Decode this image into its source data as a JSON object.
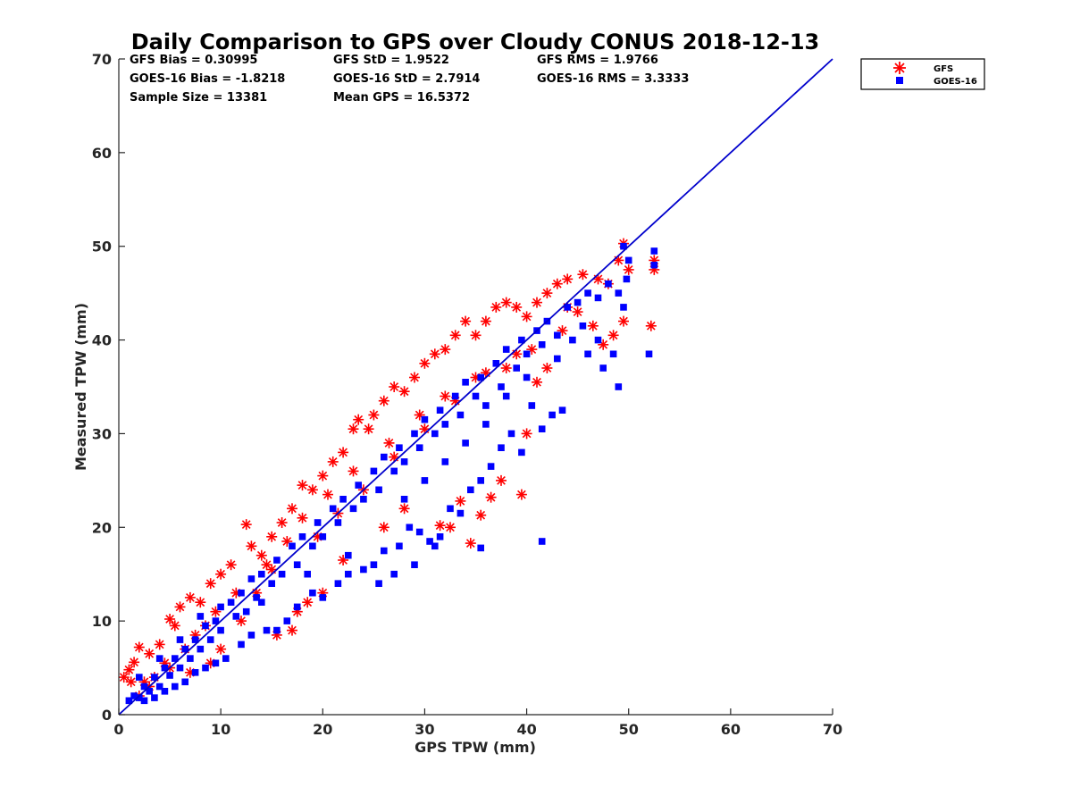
{
  "chart_data": {
    "type": "scatter",
    "title": "Daily Comparison to GPS over Cloudy CONUS 2018-12-13",
    "xlabel": "GPS TPW (mm)",
    "ylabel": "Measured TPW (mm)",
    "xlim": [
      0,
      70
    ],
    "ylim": [
      0,
      70
    ],
    "xticks": [
      "0",
      "10",
      "20",
      "30",
      "40",
      "50",
      "60",
      "70"
    ],
    "yticks": [
      "0",
      "10",
      "20",
      "30",
      "40",
      "50",
      "60",
      "70"
    ],
    "grid": false,
    "legend_position": "outside-top-right",
    "stats": [
      [
        "GFS Bias = 0.30995",
        "GFS StD = 1.9522",
        "GFS RMS = 1.9766"
      ],
      [
        "GOES-16 Bias = -1.8218",
        "GOES-16 StD = 2.7914",
        "GOES-16 RMS = 3.3333"
      ],
      [
        "Sample Size = 13381",
        "Mean GPS = 16.5372",
        ""
      ]
    ],
    "reference_line": {
      "x": [
        0,
        70
      ],
      "y": [
        0,
        70
      ],
      "color": "#0000cc"
    },
    "series": [
      {
        "name": "GFS",
        "marker": "asterisk",
        "color": "#ff0000",
        "points": [
          [
            0.5,
            4.0
          ],
          [
            1.0,
            4.8
          ],
          [
            1.5,
            5.6
          ],
          [
            2.0,
            7.2
          ],
          [
            1.2,
            3.5
          ],
          [
            3.0,
            6.5
          ],
          [
            4.0,
            7.5
          ],
          [
            5.0,
            10.2
          ],
          [
            5.5,
            9.5
          ],
          [
            6.0,
            11.5
          ],
          [
            7.0,
            12.5
          ],
          [
            8.0,
            12.0
          ],
          [
            9.0,
            14.0
          ],
          [
            10.0,
            15.0
          ],
          [
            11.0,
            16.0
          ],
          [
            12.5,
            20.3
          ],
          [
            13.0,
            18.0
          ],
          [
            14.0,
            17.0
          ],
          [
            15.0,
            19.0
          ],
          [
            16.0,
            20.5
          ],
          [
            17.0,
            22.0
          ],
          [
            18.0,
            24.5
          ],
          [
            19.0,
            24.0
          ],
          [
            20.0,
            25.5
          ],
          [
            21.0,
            27.0
          ],
          [
            22.0,
            28.0
          ],
          [
            23.0,
            30.5
          ],
          [
            23.5,
            31.5
          ],
          [
            24.5,
            30.5
          ],
          [
            25.0,
            32.0
          ],
          [
            26.0,
            33.5
          ],
          [
            27.0,
            35.0
          ],
          [
            28.0,
            34.5
          ],
          [
            29.0,
            36.0
          ],
          [
            30.0,
            37.5
          ],
          [
            31.0,
            38.5
          ],
          [
            32.0,
            39.0
          ],
          [
            33.0,
            40.5
          ],
          [
            34.0,
            42.0
          ],
          [
            35.0,
            40.5
          ],
          [
            36.0,
            42.0
          ],
          [
            37.0,
            43.5
          ],
          [
            38.0,
            44.0
          ],
          [
            39.0,
            43.5
          ],
          [
            40.0,
            42.5
          ],
          [
            41.0,
            44.0
          ],
          [
            42.0,
            45.0
          ],
          [
            43.0,
            46.0
          ],
          [
            44.0,
            46.5
          ],
          [
            45.5,
            47.0
          ],
          [
            47.0,
            46.5
          ],
          [
            48.0,
            46.0
          ],
          [
            49.0,
            48.5
          ],
          [
            49.5,
            50.3
          ],
          [
            50.0,
            47.5
          ],
          [
            52.5,
            48.5
          ],
          [
            52.5,
            47.5
          ],
          [
            52.2,
            41.5
          ],
          [
            49.5,
            42.0
          ],
          [
            48.5,
            40.5
          ],
          [
            47.5,
            39.5
          ],
          [
            46.5,
            41.5
          ],
          [
            42.0,
            37.0
          ],
          [
            41.0,
            35.5
          ],
          [
            40.0,
            30.0
          ],
          [
            39.5,
            23.5
          ],
          [
            37.5,
            25.0
          ],
          [
            36.5,
            23.2
          ],
          [
            35.5,
            21.3
          ],
          [
            34.5,
            18.3
          ],
          [
            33.5,
            22.8
          ],
          [
            32.5,
            20.0
          ],
          [
            31.5,
            20.2
          ],
          [
            12.0,
            10.0
          ],
          [
            10.0,
            7.0
          ],
          [
            9.0,
            5.5
          ],
          [
            7.0,
            4.5
          ],
          [
            5.0,
            5.0
          ],
          [
            17.5,
            11.0
          ],
          [
            17.0,
            9.0
          ],
          [
            15.5,
            8.5
          ],
          [
            18.5,
            12.0
          ],
          [
            20.0,
            13.0
          ],
          [
            22.0,
            16.5
          ],
          [
            26.0,
            20.0
          ],
          [
            28.0,
            22.0
          ],
          [
            3.0,
            3.0
          ],
          [
            2.0,
            2.0
          ],
          [
            6.5,
            7.0
          ],
          [
            8.5,
            9.5
          ],
          [
            13.5,
            13.0
          ],
          [
            15.0,
            15.5
          ],
          [
            19.5,
            19.0
          ],
          [
            21.5,
            21.5
          ],
          [
            24.0,
            24.0
          ],
          [
            27.0,
            27.5
          ],
          [
            30.0,
            30.5
          ],
          [
            33.0,
            33.5
          ],
          [
            36.0,
            36.5
          ],
          [
            39.0,
            38.5
          ],
          [
            44.0,
            43.5
          ],
          [
            45.0,
            43.0
          ],
          [
            43.5,
            41.0
          ],
          [
            40.5,
            39.0
          ],
          [
            38.0,
            37.0
          ],
          [
            35.0,
            36.0
          ],
          [
            32.0,
            34.0
          ],
          [
            29.5,
            32.0
          ],
          [
            26.5,
            29.0
          ],
          [
            23.0,
            26.0
          ],
          [
            20.5,
            23.5
          ],
          [
            18.0,
            21.0
          ],
          [
            16.5,
            18.5
          ],
          [
            14.5,
            16.0
          ],
          [
            11.5,
            13.0
          ],
          [
            9.5,
            11.0
          ],
          [
            7.5,
            8.5
          ],
          [
            4.5,
            5.5
          ],
          [
            3.5,
            4.0
          ],
          [
            2.5,
            3.5
          ]
        ]
      },
      {
        "name": "GOES-16",
        "marker": "square",
        "color": "#0000ff",
        "points": [
          [
            1.0,
            1.5
          ],
          [
            1.5,
            2.0
          ],
          [
            2.0,
            1.8
          ],
          [
            2.5,
            3.0
          ],
          [
            3.0,
            2.5
          ],
          [
            3.5,
            4.0
          ],
          [
            4.0,
            3.0
          ],
          [
            4.5,
            5.0
          ],
          [
            5.0,
            4.2
          ],
          [
            5.5,
            6.0
          ],
          [
            6.0,
            5.0
          ],
          [
            6.5,
            7.0
          ],
          [
            7.0,
            6.0
          ],
          [
            7.5,
            8.0
          ],
          [
            8.0,
            7.0
          ],
          [
            8.5,
            9.5
          ],
          [
            9.0,
            8.0
          ],
          [
            9.5,
            10.0
          ],
          [
            10.0,
            9.0
          ],
          [
            11.0,
            12.0
          ],
          [
            11.5,
            10.5
          ],
          [
            12.0,
            13.0
          ],
          [
            12.5,
            11.0
          ],
          [
            13.0,
            14.5
          ],
          [
            13.5,
            12.5
          ],
          [
            14.0,
            15.0
          ],
          [
            15.0,
            14.0
          ],
          [
            15.5,
            16.5
          ],
          [
            16.0,
            15.0
          ],
          [
            17.0,
            18.0
          ],
          [
            17.5,
            16.0
          ],
          [
            18.0,
            19.0
          ],
          [
            19.0,
            18.0
          ],
          [
            19.5,
            20.5
          ],
          [
            20.0,
            19.0
          ],
          [
            21.0,
            22.0
          ],
          [
            21.5,
            20.5
          ],
          [
            22.0,
            23.0
          ],
          [
            23.0,
            22.0
          ],
          [
            23.5,
            24.5
          ],
          [
            24.0,
            23.0
          ],
          [
            25.0,
            26.0
          ],
          [
            25.5,
            24.0
          ],
          [
            26.0,
            27.5
          ],
          [
            27.0,
            26.0
          ],
          [
            27.5,
            28.5
          ],
          [
            28.0,
            27.0
          ],
          [
            29.0,
            30.0
          ],
          [
            29.5,
            28.5
          ],
          [
            30.0,
            31.5
          ],
          [
            31.0,
            30.0
          ],
          [
            31.5,
            32.5
          ],
          [
            32.0,
            31.0
          ],
          [
            33.0,
            34.0
          ],
          [
            33.5,
            32.0
          ],
          [
            34.0,
            35.5
          ],
          [
            35.0,
            34.0
          ],
          [
            35.5,
            36.0
          ],
          [
            36.0,
            33.0
          ],
          [
            37.0,
            37.5
          ],
          [
            37.5,
            35.0
          ],
          [
            38.0,
            39.0
          ],
          [
            39.0,
            37.0
          ],
          [
            39.5,
            40.0
          ],
          [
            40.0,
            38.5
          ],
          [
            41.0,
            41.0
          ],
          [
            41.5,
            39.5
          ],
          [
            42.0,
            42.0
          ],
          [
            43.0,
            40.5
          ],
          [
            44.0,
            43.5
          ],
          [
            45.0,
            44.0
          ],
          [
            46.0,
            45.0
          ],
          [
            47.0,
            44.5
          ],
          [
            48.0,
            46.0
          ],
          [
            49.0,
            45.0
          ],
          [
            49.5,
            50.0
          ],
          [
            50.0,
            48.5
          ],
          [
            49.8,
            46.5
          ],
          [
            52.5,
            49.5
          ],
          [
            52.5,
            48.0
          ],
          [
            52.0,
            38.5
          ],
          [
            49.5,
            43.5
          ],
          [
            49.0,
            35.0
          ],
          [
            48.5,
            38.5
          ],
          [
            47.5,
            37.0
          ],
          [
            46.0,
            38.5
          ],
          [
            44.5,
            40.0
          ],
          [
            43.5,
            32.5
          ],
          [
            42.5,
            32.0
          ],
          [
            41.5,
            30.5
          ],
          [
            40.5,
            33.0
          ],
          [
            39.5,
            28.0
          ],
          [
            38.5,
            30.0
          ],
          [
            37.5,
            28.5
          ],
          [
            36.5,
            26.5
          ],
          [
            35.5,
            25.0
          ],
          [
            34.5,
            24.0
          ],
          [
            33.5,
            21.5
          ],
          [
            32.5,
            22.0
          ],
          [
            31.5,
            19.0
          ],
          [
            30.5,
            18.5
          ],
          [
            29.5,
            19.5
          ],
          [
            28.5,
            20.0
          ],
          [
            27.5,
            18.0
          ],
          [
            26.0,
            17.5
          ],
          [
            25.0,
            16.0
          ],
          [
            24.0,
            15.5
          ],
          [
            22.5,
            15.0
          ],
          [
            21.5,
            14.0
          ],
          [
            20.0,
            12.5
          ],
          [
            19.0,
            13.0
          ],
          [
            17.5,
            11.5
          ],
          [
            16.5,
            10.0
          ],
          [
            15.5,
            9.0
          ],
          [
            14.5,
            9.0
          ],
          [
            13.0,
            8.5
          ],
          [
            12.0,
            7.5
          ],
          [
            10.5,
            6.0
          ],
          [
            9.5,
            5.5
          ],
          [
            8.5,
            5.0
          ],
          [
            7.5,
            4.5
          ],
          [
            6.5,
            3.5
          ],
          [
            5.5,
            3.0
          ],
          [
            4.5,
            2.5
          ],
          [
            3.5,
            1.8
          ],
          [
            2.5,
            1.5
          ],
          [
            41.5,
            18.5
          ],
          [
            35.5,
            17.8
          ],
          [
            31.0,
            18.0
          ],
          [
            29.0,
            16.0
          ],
          [
            25.5,
            14.0
          ],
          [
            27.0,
            15.0
          ],
          [
            22.5,
            17.0
          ],
          [
            18.5,
            15.0
          ],
          [
            14.0,
            12.0
          ],
          [
            10.0,
            11.5
          ],
          [
            8.0,
            10.5
          ],
          [
            6.0,
            8.0
          ],
          [
            4.0,
            6.0
          ],
          [
            2.0,
            4.0
          ],
          [
            47.0,
            40.0
          ],
          [
            45.5,
            41.5
          ],
          [
            43.0,
            38.0
          ],
          [
            40.0,
            36.0
          ],
          [
            38.0,
            34.0
          ],
          [
            36.0,
            31.0
          ],
          [
            34.0,
            29.0
          ],
          [
            32.0,
            27.0
          ],
          [
            30.0,
            25.0
          ],
          [
            28.0,
            23.0
          ]
        ]
      }
    ]
  }
}
